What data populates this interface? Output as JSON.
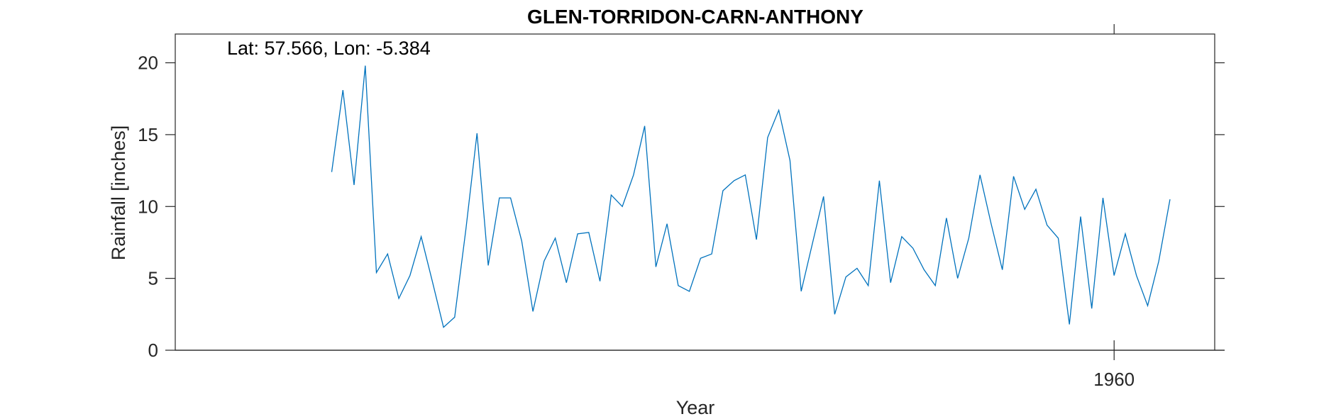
{
  "chart_data": {
    "type": "line",
    "title": "GLEN-TORRIDON-CARN-ANTHONY",
    "annotation": "Lat: 57.566, Lon: -5.384",
    "xlabel": "Year",
    "ylabel": "Rainfall [inches]",
    "xlim": [
      1876,
      1969
    ],
    "ylim": [
      0,
      22
    ],
    "xticks": [
      1960
    ],
    "xtick_labels": [
      "1960"
    ],
    "yticks": [
      0,
      5,
      10,
      15,
      20
    ],
    "ytick_labels": [
      "0",
      "5",
      "10",
      "15",
      "20"
    ],
    "grid": false,
    "line_color": "#0072BD",
    "series": [
      {
        "name": "Rainfall",
        "x": [
          1890,
          1891,
          1892,
          1893,
          1894,
          1895,
          1896,
          1897,
          1898,
          1899,
          1900,
          1901,
          1902,
          1903,
          1904,
          1905,
          1906,
          1907,
          1908,
          1909,
          1910,
          1911,
          1912,
          1913,
          1914,
          1915,
          1916,
          1917,
          1918,
          1919,
          1920,
          1921,
          1922,
          1923,
          1924,
          1925,
          1926,
          1927,
          1928,
          1929,
          1930,
          1931,
          1932,
          1933,
          1934,
          1935,
          1936,
          1937,
          1938,
          1939,
          1940,
          1941,
          1942,
          1943,
          1944,
          1945,
          1946,
          1947,
          1948,
          1949,
          1950,
          1951,
          1952,
          1953,
          1954,
          1955,
          1956,
          1957,
          1958,
          1959,
          1960,
          1961,
          1962,
          1963,
          1964,
          1965
        ],
        "values": [
          12.4,
          18.1,
          11.5,
          19.8,
          5.4,
          6.7,
          3.6,
          5.2,
          7.9,
          4.8,
          1.6,
          2.3,
          8.4,
          15.1,
          5.9,
          10.6,
          10.6,
          7.6,
          2.7,
          6.2,
          7.8,
          4.7,
          8.1,
          8.2,
          4.8,
          10.8,
          10.0,
          12.2,
          15.6,
          5.8,
          8.8,
          4.5,
          4.1,
          6.4,
          6.7,
          11.1,
          11.8,
          12.2,
          7.7,
          14.8,
          16.7,
          13.2,
          4.1,
          7.4,
          10.7,
          2.5,
          5.1,
          5.7,
          4.5,
          11.8,
          4.7,
          7.9,
          7.1,
          5.6,
          4.5,
          9.2,
          5.0,
          7.8,
          12.2,
          8.8,
          5.6,
          12.1,
          9.8,
          11.2,
          8.7,
          7.8,
          1.8,
          9.3,
          2.9,
          10.6,
          5.2,
          8.1,
          5.2,
          3.1,
          6.2,
          10.5
        ]
      }
    ]
  }
}
